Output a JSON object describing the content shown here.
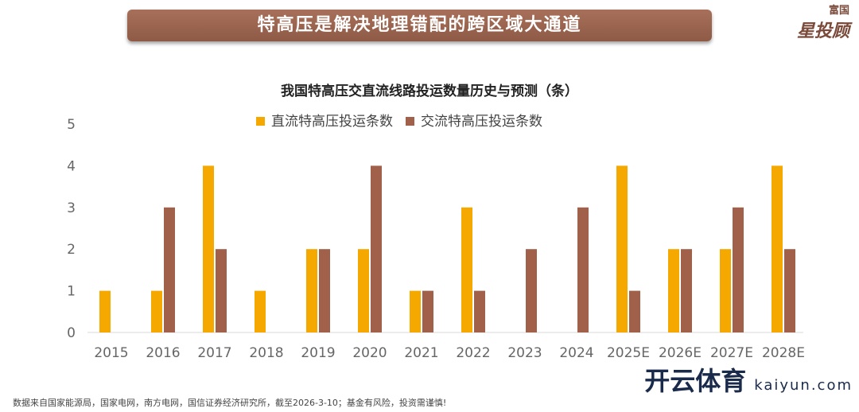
{
  "banner": {
    "title": "特高压是解决地理错配的跨区域大通道"
  },
  "logo": {
    "top": "富国",
    "bottom": "星投顾"
  },
  "chart_data": {
    "type": "bar",
    "title": "我国特高压交直流线路投运数量历史与预测（条）",
    "categories": [
      "2015",
      "2016",
      "2017",
      "2018",
      "2019",
      "2020",
      "2021",
      "2022",
      "2023",
      "2024",
      "2025E",
      "2026E",
      "2027E",
      "2028E"
    ],
    "series": [
      {
        "name": "直流特高压投运条数",
        "color": "#f5a800",
        "values": [
          1,
          1,
          4,
          1,
          2,
          2,
          1,
          3,
          0,
          0,
          4,
          2,
          2,
          4
        ]
      },
      {
        "name": "交流特高压投运条数",
        "color": "#a0604a",
        "values": [
          0,
          3,
          2,
          0,
          2,
          4,
          1,
          1,
          2,
          3,
          1,
          2,
          3,
          2
        ]
      }
    ],
    "ylim": [
      0,
      5
    ],
    "yticks": [
      "0",
      "1",
      "2",
      "3",
      "4",
      "5"
    ],
    "legend": "top",
    "grid": false
  },
  "footer": "数据来自国家能源局，国家电网，南方电网，国信证券经济研究所，截至2026-3-10；基金有风险，投资需谨慎!",
  "watermark": {
    "title": "开云体育",
    "url": "kaiyun.com"
  }
}
